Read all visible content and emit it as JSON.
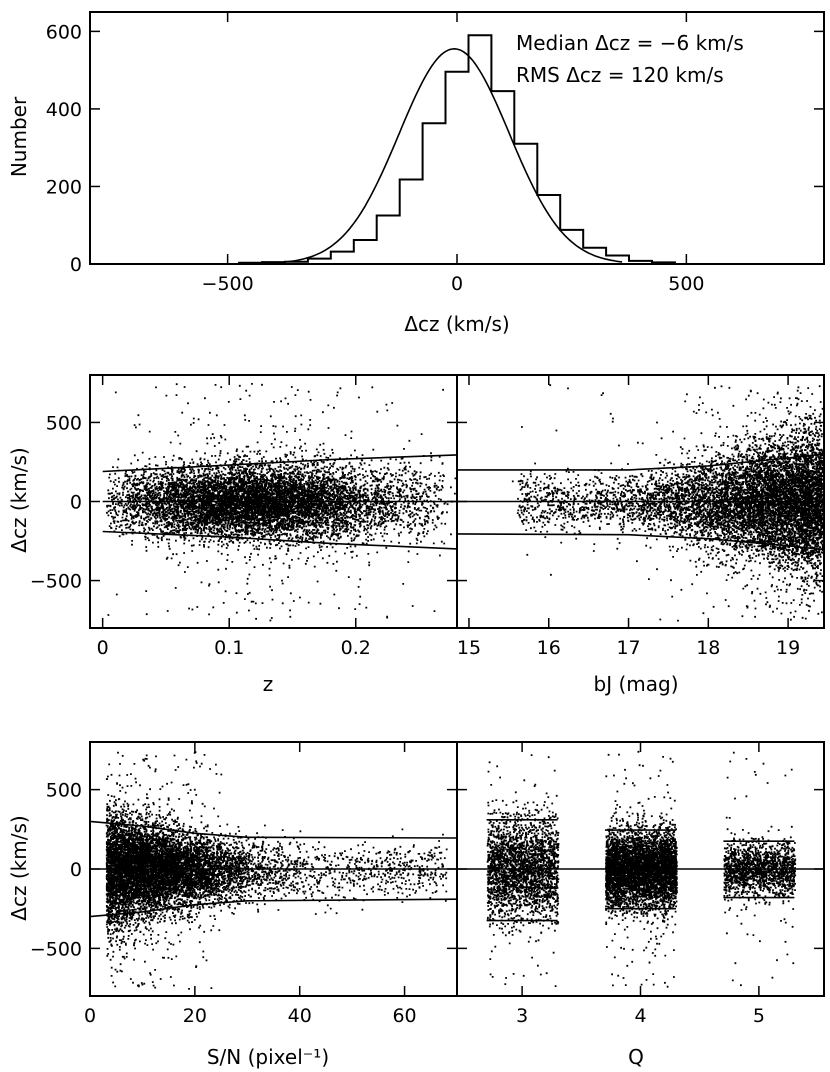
{
  "chart_data": [
    {
      "id": "hist",
      "type": "histogram",
      "xlabel": "Δcz (km/s)",
      "ylabel": "Number",
      "xlim": [
        -800,
        800
      ],
      "ylim": [
        0,
        650
      ],
      "xticks": [
        -500,
        0,
        500
      ],
      "yticks": [
        0,
        200,
        400,
        600
      ],
      "annotations": [
        "Median Δcz = −6 km/s",
        "RMS Δcz = 120 km/s"
      ],
      "series": [
        {
          "name": "histogram",
          "bin_edges": [
            -475,
            -425,
            -375,
            -325,
            -275,
            -225,
            -175,
            -125,
            -75,
            -25,
            25,
            75,
            125,
            175,
            225,
            275,
            325,
            375,
            425,
            475
          ],
          "values": [
            3,
            5,
            6,
            14,
            32,
            62,
            125,
            218,
            363,
            496,
            590,
            446,
            310,
            178,
            88,
            42,
            22,
            8,
            4
          ]
        },
        {
          "name": "gaussian fit",
          "mean": -6,
          "sigma": 120,
          "amplitude": 555,
          "x_range": [
            -370,
            360
          ]
        }
      ]
    },
    {
      "id": "z",
      "type": "scatter",
      "xlabel": "z",
      "ylabel": "Δcz (km/s)",
      "xlim": [
        -0.01,
        0.28
      ],
      "ylim": [
        -800,
        800
      ],
      "xticks": [
        0,
        0.1,
        0.2
      ],
      "yticks": [
        -500,
        0,
        500
      ],
      "median": [
        [
          0,
          0
        ],
        [
          0.28,
          0
        ]
      ],
      "upper_band": [
        [
          0,
          190
        ],
        [
          0.1,
          230
        ],
        [
          0.18,
          265
        ],
        [
          0.28,
          295
        ]
      ],
      "lower_band": [
        [
          0,
          -190
        ],
        [
          0.1,
          -225
        ],
        [
          0.18,
          -265
        ],
        [
          0.28,
          -300
        ]
      ],
      "n_points": 9000
    },
    {
      "id": "bj",
      "type": "scatter",
      "xlabel": "bJ (mag)",
      "ylabel": "",
      "xlim": [
        14.85,
        19.45
      ],
      "ylim": [
        -800,
        800
      ],
      "xticks": [
        15,
        16,
        17,
        18,
        19
      ],
      "yticks": [
        -500,
        0,
        500
      ],
      "median": [
        [
          14.85,
          0
        ],
        [
          19.45,
          0
        ]
      ],
      "upper_band": [
        [
          14.85,
          200
        ],
        [
          17,
          200
        ],
        [
          18,
          225
        ],
        [
          19,
          275
        ],
        [
          19.45,
          300
        ]
      ],
      "lower_band": [
        [
          14.85,
          -205
        ],
        [
          17,
          -210
        ],
        [
          18,
          -235
        ],
        [
          19,
          -280
        ],
        [
          19.45,
          -305
        ]
      ],
      "n_points": 9000
    },
    {
      "id": "sn",
      "type": "scatter",
      "xlabel": "S/N (pixel⁻¹)",
      "ylabel": "Δcz (km/s)",
      "xlim": [
        0,
        70
      ],
      "ylim": [
        -800,
        800
      ],
      "xticks": [
        0,
        20,
        40,
        60
      ],
      "yticks": [
        -500,
        0,
        500
      ],
      "median": [
        [
          0,
          0
        ],
        [
          70,
          0
        ]
      ],
      "upper_band": [
        [
          0,
          300
        ],
        [
          10,
          270
        ],
        [
          20,
          225
        ],
        [
          30,
          200
        ],
        [
          70,
          195
        ]
      ],
      "lower_band": [
        [
          0,
          -300
        ],
        [
          10,
          -270
        ],
        [
          20,
          -225
        ],
        [
          30,
          -200
        ],
        [
          70,
          -190
        ]
      ],
      "n_points": 9000
    },
    {
      "id": "q",
      "type": "scatter",
      "xlabel": "Q",
      "ylabel": "",
      "xlim": [
        2.45,
        5.55
      ],
      "ylim": [
        -800,
        800
      ],
      "xticks": [
        3,
        4,
        5
      ],
      "yticks": [
        -500,
        0,
        500
      ],
      "median": [
        [
          2.45,
          0
        ],
        [
          5.55,
          0
        ]
      ],
      "bands": [
        {
          "x": [
            2.7,
            3.3
          ],
          "upper": 310,
          "lower": -325
        },
        {
          "x": [
            3.7,
            4.3
          ],
          "upper": 245,
          "lower": -250
        },
        {
          "x": [
            4.7,
            5.3
          ],
          "upper": 175,
          "lower": -180
        }
      ],
      "n_points": 9000
    }
  ]
}
